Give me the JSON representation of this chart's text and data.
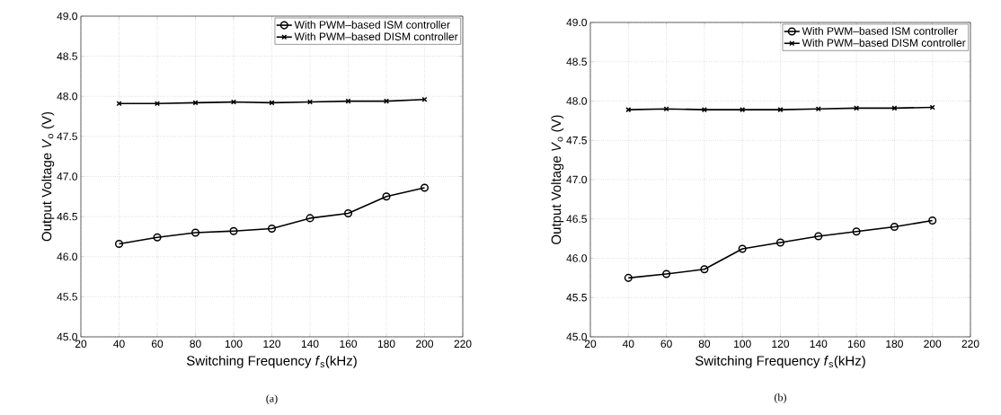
{
  "chart_data": [
    {
      "type": "line",
      "x": [
        40,
        60,
        80,
        100,
        120,
        140,
        160,
        180,
        200
      ],
      "xlabel": "Switching Frequency *f*$_{s}$(kHz)",
      "ylabel": "Output Voltage *V*$_{o}$ (V)",
      "xlim": [
        20,
        220
      ],
      "xticks": [
        20,
        40,
        60,
        80,
        100,
        120,
        140,
        160,
        180,
        200,
        220
      ],
      "ylim": [
        45,
        49
      ],
      "yticks": [
        {
          "value": 45,
          "label": "45.0"
        },
        {
          "value": 45.5,
          "label": "45.5"
        },
        {
          "value": 46,
          "label": "46.0"
        },
        {
          "value": 46.5,
          "label": "46.5"
        },
        {
          "value": 47,
          "label": "47.0"
        },
        {
          "value": 47.5,
          "label": "47.5"
        },
        {
          "value": 48,
          "label": "48.0"
        },
        {
          "value": 48.5,
          "label": "48.5"
        },
        {
          "value": 49,
          "label": "49.0"
        }
      ],
      "grid": true,
      "legend": "top right",
      "annotations": [
        "(a)"
      ],
      "series": [
        {
          "name": "With PWM–based ISM controller",
          "color": "#000000",
          "marker": "circle",
          "values": [
            46.16,
            46.24,
            46.3,
            46.32,
            46.35,
            46.48,
            46.54,
            46.75,
            46.86
          ]
        },
        {
          "name": "With PWM–based DISM controller",
          "color": "#000000",
          "marker": "cross",
          "values": [
            47.91,
            47.91,
            47.92,
            47.93,
            47.92,
            47.93,
            47.94,
            47.94,
            47.96
          ]
        }
      ]
    },
    {
      "type": "line",
      "x": [
        40,
        60,
        80,
        100,
        120,
        140,
        160,
        180,
        200
      ],
      "xlabel": "Switching Frequency *f*$_{s}$(kHz)",
      "ylabel": "Output Voltage *V*$_{o}$ (V)",
      "xlim": [
        20,
        220
      ],
      "xticks": [
        20,
        40,
        60,
        80,
        100,
        120,
        140,
        160,
        180,
        200,
        220
      ],
      "ylim": [
        45,
        49
      ],
      "yticks": [
        {
          "value": 45,
          "label": "45.0"
        },
        {
          "value": 45.5,
          "label": "45.5"
        },
        {
          "value": 46,
          "label": "46.0"
        },
        {
          "value": 46.5,
          "label": "46.5"
        },
        {
          "value": 47,
          "label": "47.0"
        },
        {
          "value": 47.5,
          "label": "47.5"
        },
        {
          "value": 48,
          "label": "48.0"
        },
        {
          "value": 48.5,
          "label": "48.5"
        },
        {
          "value": 49,
          "label": "49.0"
        }
      ],
      "grid": true,
      "legend": "top right",
      "annotations": [
        "(b)"
      ],
      "series": [
        {
          "name": "With PWM–based ISM controller",
          "color": "#000000",
          "marker": "circle",
          "values": [
            45.75,
            45.8,
            45.86,
            46.12,
            46.2,
            46.28,
            46.34,
            46.4,
            46.48
          ]
        },
        {
          "name": "With PWM–based DISM controller",
          "color": "#000000",
          "marker": "cross",
          "values": [
            47.89,
            47.9,
            47.89,
            47.89,
            47.89,
            47.9,
            47.91,
            47.91,
            47.92
          ]
        }
      ]
    }
  ]
}
